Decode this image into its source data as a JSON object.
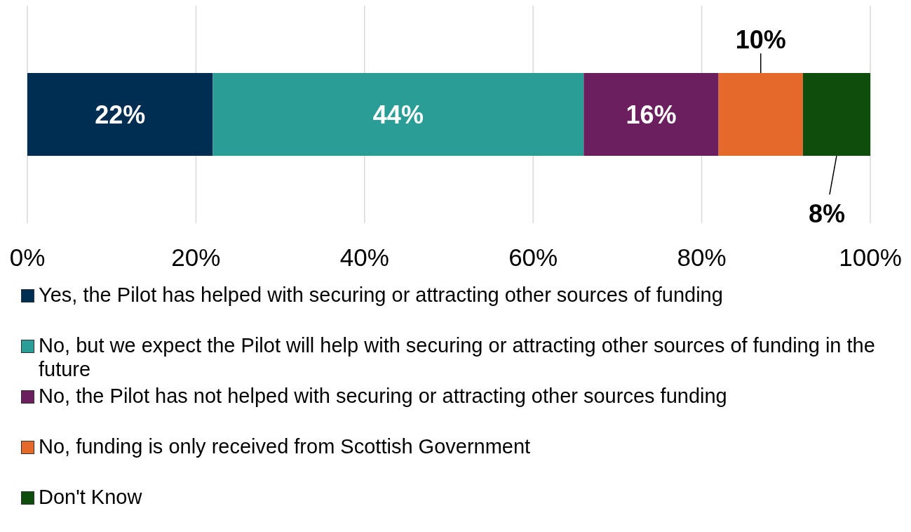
{
  "chart_data": {
    "type": "bar",
    "orientation": "horizontal",
    "stacked": true,
    "categories": [
      null
    ],
    "series": [
      {
        "name": "Yes, the Pilot has helped with securing or attracting other sources of funding",
        "color": "#002d52",
        "values": [
          22
        ],
        "value_labels": [
          "22%"
        ]
      },
      {
        "name": "No, but we expect the Pilot will help with securing or attracting other sources of funding in the future",
        "color": "#2a9d96",
        "values": [
          44
        ],
        "value_labels": [
          "44%"
        ]
      },
      {
        "name": "No, the Pilot has not helped with securing or attracting other sources funding",
        "color": "#6b1f5f",
        "values": [
          16
        ],
        "value_labels": [
          "16%"
        ]
      },
      {
        "name": "No, funding is only received from Scottish Government",
        "color": "#e5692b",
        "values": [
          10
        ],
        "value_labels": [
          "10%"
        ]
      },
      {
        "name": "Don't Know",
        "color": "#0f4d0d",
        "values": [
          8
        ],
        "value_labels": [
          "8%"
        ]
      }
    ],
    "xlim": [
      0,
      100
    ],
    "xticks": [
      {
        "value": 0,
        "label": "0%"
      },
      {
        "value": 20,
        "label": "20%"
      },
      {
        "value": 40,
        "label": "40%"
      },
      {
        "value": 60,
        "label": "60%"
      },
      {
        "value": 80,
        "label": "80%"
      },
      {
        "value": 100,
        "label": "100%"
      }
    ],
    "grid": "x",
    "legend": "bottom"
  }
}
